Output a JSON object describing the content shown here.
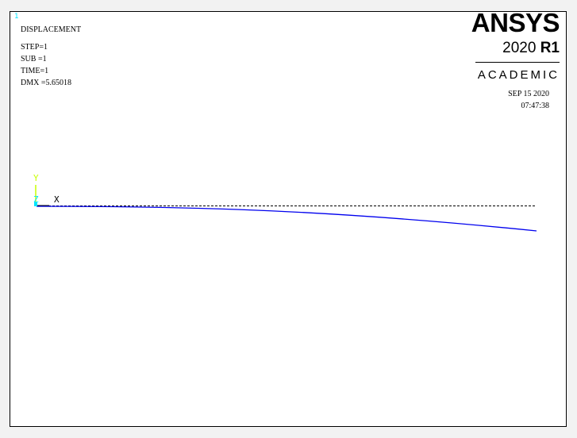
{
  "window_number": "1",
  "plot_info": {
    "title": "DISPLACEMENT",
    "step": "STEP=1",
    "sub": "SUB =1",
    "time": "TIME=1",
    "dmx": "DMX =5.65018"
  },
  "logo": {
    "brand": "ANSYS",
    "version_year": "2020",
    "version_release": "R1",
    "edition": "ACADEMIC"
  },
  "timestamp": {
    "date": "SEP 15 2020",
    "time": "07:47:38"
  },
  "triad": {
    "y_label": "Y",
    "z_label": "Z",
    "x_label": "X"
  },
  "colors": {
    "deformed_shape": "#0000ee",
    "undeformed_shape": "#000000",
    "triad_y": "#c8ff00",
    "triad_z": "#00e5ff"
  }
}
